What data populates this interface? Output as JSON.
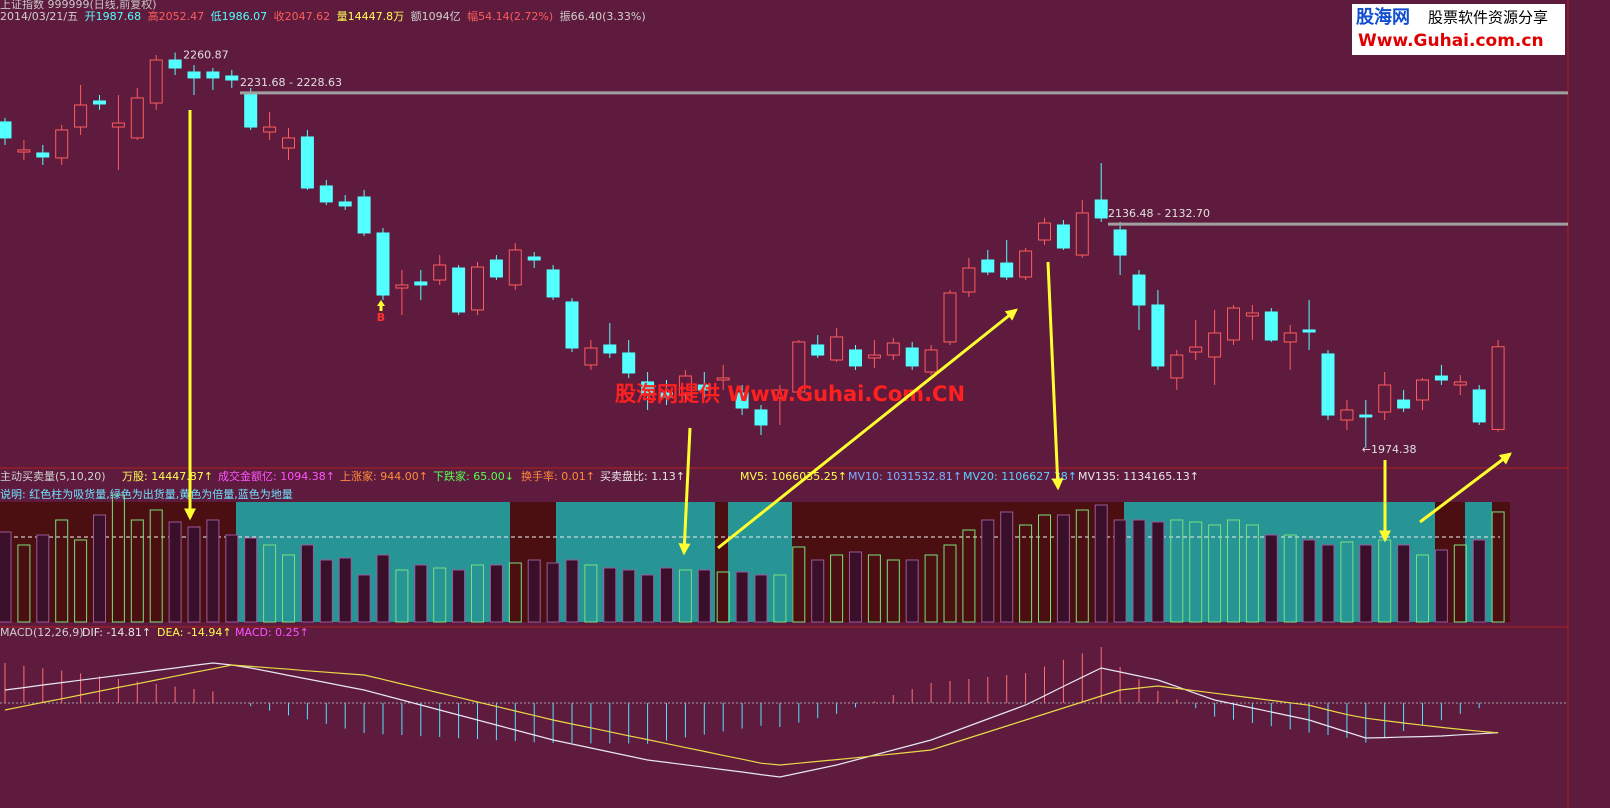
{
  "header": {
    "title": "上证指数 999999(日线,前复权)",
    "info": [
      "2014/03/21/五",
      "开1987.68",
      "高2052.47",
      "低1986.07",
      "收2047.62",
      "量14447.8万",
      "额1094亿",
      "幅54.14(2.72%)",
      "振66.40(3.33%)"
    ]
  },
  "logo": {
    "name": "股海网",
    "slogan": "股票软件资源分享",
    "url": "Www.Guhai.com.cn"
  },
  "chart_data": [
    {
      "type": "candlestick",
      "ylim": [
        1960,
        2299
      ],
      "up_color": "#ff5c5c",
      "down_color": "#54ffff",
      "open": [
        2210.6,
        2188.8,
        2188.1,
        2184.5,
        2206.9,
        2225.8,
        2206.9,
        2199,
        2224.3,
        2255.5,
        2246.8,
        2246.8,
        2243.9,
        2232.3,
        2203.3,
        2191.7,
        2199.7,
        2164.2,
        2152.6,
        2156.2,
        2130.1,
        2090.2,
        2094.6,
        2096,
        2104.7,
        2074.3,
        2110.5,
        2092.4,
        2112.7,
        2103.3,
        2080.1,
        2034.4,
        2048.9,
        2043.1,
        2022.1,
        2014.1,
        2012.6,
        2019.9,
        2023.5,
        2014.1,
        2001.8,
        2010.5,
        2014.8,
        2048.9,
        2038,
        2045.3,
        2039.5,
        2041.6,
        2046.7,
        2029.3,
        2051.1,
        2087.3,
        2110.5,
        2108.3,
        2098.2,
        2125,
        2135.9,
        2114.1,
        2154,
        2132.3,
        2099.6,
        2077.9,
        2025,
        2043.8,
        2040.2,
        2052.5,
        2069.9,
        2072.8,
        2051.1,
        2059.8,
        2042.4,
        1994.5,
        1998.1,
        2000.3,
        2009,
        2009,
        2026.4,
        2019.9,
        2016.3,
        1987.68
      ],
      "high": [
        2213.5,
        2197.5,
        2193.9,
        2208.4,
        2237.4,
        2230.1,
        2230.1,
        2235.2,
        2259.1,
        2260.87,
        2251.9,
        2249.7,
        2248.3,
        2235.2,
        2217.8,
        2206.2,
        2204.8,
        2168.5,
        2157.6,
        2161.3,
        2133.7,
        2103.3,
        2103.3,
        2114.1,
        2106.9,
        2109.1,
        2114.1,
        2122.8,
        2116.3,
        2106.9,
        2082.9,
        2052.5,
        2064.8,
        2052.5,
        2029.3,
        2023.5,
        2030.8,
        2029.3,
        2034.4,
        2019.9,
        2005.4,
        2019.9,
        2052.5,
        2056.1,
        2061.2,
        2048.9,
        2052.5,
        2054,
        2051.1,
        2048.9,
        2088.8,
        2112,
        2117.8,
        2125,
        2119.2,
        2141,
        2139.5,
        2154,
        2180.8,
        2138.1,
        2103.3,
        2088.8,
        2045.3,
        2067,
        2074.3,
        2077.9,
        2077.9,
        2075.7,
        2063.4,
        2081.5,
        2045.3,
        2009,
        2009,
        2029.3,
        2016.3,
        2025,
        2034.4,
        2027.1,
        2019.9,
        2052.47
      ],
      "low": [
        2193.9,
        2183,
        2179.4,
        2179.4,
        2201.1,
        2219.3,
        2175.8,
        2197.5,
        2219.3,
        2244.6,
        2230.1,
        2233.8,
        2235.2,
        2204.8,
        2197.5,
        2183,
        2161.3,
        2150.4,
        2146.8,
        2127.9,
        2081.5,
        2070.6,
        2081.5,
        2092.4,
        2070.6,
        2070.6,
        2096,
        2088.8,
        2104.7,
        2081.5,
        2043.8,
        2030.8,
        2039.5,
        2025,
        2001.8,
        2005.4,
        2009,
        2010.5,
        2016.3,
        1998.1,
        1983.6,
        1990.9,
        2012.6,
        2039.5,
        2036.6,
        2030.8,
        2032.2,
        2038,
        2030.8,
        2027.1,
        2048.9,
        2083.7,
        2099.6,
        2096,
        2096,
        2121.4,
        2117.8,
        2112,
        2138.1,
        2099.6,
        2059.8,
        2030.8,
        2016.3,
        2038,
        2019.9,
        2048.9,
        2052.5,
        2051.1,
        2030.8,
        2045.3,
        1994.5,
        1987.3,
        1974.38,
        1994.5,
        2000.3,
        2001.8,
        2019.9,
        2012.6,
        1990.9,
        1986.07
      ],
      "close": [
        2199,
        2190.3,
        2185.2,
        2204.8,
        2222.9,
        2223.6,
        2209.8,
        2228,
        2255.5,
        2249.7,
        2242.5,
        2242.5,
        2241,
        2206.9,
        2206.9,
        2199,
        2162.7,
        2152.6,
        2149.7,
        2130.1,
        2085.1,
        2092.4,
        2092.4,
        2106.9,
        2072.8,
        2105.4,
        2098.2,
        2117.8,
        2110.5,
        2083.7,
        2046.7,
        2046.7,
        2043.1,
        2028.6,
        2012.6,
        2011.2,
        2026.4,
        2016.3,
        2025,
        2003.2,
        1990.9,
        2016.3,
        2051.1,
        2041.6,
        2054.7,
        2033.7,
        2041.6,
        2050.3,
        2033.7,
        2045.3,
        2086.6,
        2104.7,
        2101.8,
        2098.2,
        2117,
        2137.3,
        2119.2,
        2144.6,
        2141,
        2114.1,
        2077.9,
        2033.7,
        2041.6,
        2047.4,
        2057.6,
        2075.7,
        2072.1,
        2052.5,
        2057.6,
        2058.3,
        1998.1,
        2001.8,
        1996.7,
        2019.9,
        2003.2,
        2023.5,
        2023.5,
        2022.1,
        1993.1,
        2047.62
      ],
      "high_label": "2260.87",
      "low_label": "←1974.38",
      "gaps": [
        {
          "value": 2231.68,
          "label": "2231.68 - 2228.63"
        },
        {
          "value": 2136.48,
          "label": "2136.48 - 2132.70"
        }
      ],
      "signal": "B",
      "watermark": "股海网提供 Www.Guhai.Com.CN"
    },
    {
      "type": "bar",
      "title": "主动买卖量(5,10,20)",
      "stats": [
        "万股: 14447.87↑",
        "成交金额亿: 1094.38↑",
        "上涨家: 944.00↑",
        "下跌家: 65.00↓",
        "换手率: 0.01↑",
        "买卖盘比: 1.13↑",
        "MV5: 1066035.25↑",
        "MV10: 1031532.81↑",
        "MV20: 1106627.38↑",
        "MV135: 1134165.13↑"
      ],
      "note": "说明: 红色柱为吸货量,绿色为出货量,黄色为倍量,蓝色为地量",
      "ylim": [
        0,
        20220
      ],
      "up_color": "#7be07b",
      "down_color": "#3a0f2a",
      "values": [
        11817,
        10110,
        11423,
        13393,
        10767,
        14049,
        16675,
        13393,
        14706,
        13130,
        12474,
        13393,
        11423,
        11029,
        10110,
        8797,
        10110,
        8141,
        8403,
        6171,
        8797,
        6828,
        7484,
        7090,
        6828,
        7484,
        7484,
        7747,
        8141,
        7747,
        8141,
        7484,
        7090,
        6828,
        6171,
        7090,
        6828,
        6828,
        6565,
        6565,
        6171,
        6171,
        9848,
        8141,
        8797,
        9191,
        8797,
        8141,
        8141,
        8797,
        10110,
        12080,
        13393,
        14443,
        12736,
        14049,
        14049,
        14706,
        15362,
        13393,
        13393,
        13130,
        13393,
        13130,
        12736,
        13393,
        12736,
        11423,
        11423,
        10767,
        10110,
        10504,
        10110,
        10767,
        10110,
        8797,
        9454,
        10110,
        10767,
        14447.87
      ]
    },
    {
      "type": "macd",
      "title": "MACD(12,26,9)",
      "stats": [
        "DIF: -14.81↑",
        "DEA: -14.94↑",
        "MACD: 0.25↑"
      ],
      "ylim": [
        -41,
        31.5
      ],
      "dif": {
        "color": "#e6e6f0",
        "values": [
          6.5,
          7.7,
          9,
          10.2,
          11.4,
          12.6,
          13.8,
          15,
          16.3,
          17.5,
          18.8,
          20,
          19,
          17.5,
          15.7,
          13.8,
          12,
          10.2,
          8.3,
          6.5,
          4,
          1.5,
          -1,
          -3.5,
          -6,
          -8.5,
          -11,
          -13.5,
          -16,
          -18.5,
          -20.5,
          -22.5,
          -24.5,
          -26.5,
          -28.5,
          -29.7,
          -30.9,
          -32.1,
          -33.3,
          -34.5,
          -35.8,
          -37,
          -35,
          -33,
          -31,
          -28.5,
          -26,
          -23.5,
          -21,
          -18.5,
          -15,
          -11.5,
          -8,
          -4.5,
          -1,
          3.6,
          8.3,
          12.9,
          17.5,
          15.5,
          13.5,
          11.5,
          8.2,
          4.8,
          1.5,
          -0.5,
          -2.5,
          -4.5,
          -6.5,
          -8.5,
          -11.5,
          -14.5,
          -17.5,
          -17.3,
          -17,
          -16.8,
          -16.5,
          -15.9,
          -15.4,
          -14.81
        ]
      },
      "dea": {
        "color": "#e8d84a",
        "values": [
          -3.5,
          -1.6,
          0.3,
          2.1,
          4,
          5.9,
          7.8,
          9.6,
          11.5,
          13.4,
          15.3,
          17.1,
          19,
          18.3,
          17.6,
          16.9,
          16.1,
          15.4,
          14.7,
          14,
          11.8,
          9.5,
          7.3,
          5,
          2.8,
          0.5,
          -1.7,
          -4,
          -6.2,
          -8.5,
          -10.5,
          -12.4,
          -14.4,
          -16.4,
          -18.3,
          -20.3,
          -22.3,
          -24.2,
          -26.2,
          -28.1,
          -30.1,
          -31,
          -30.1,
          -29.2,
          -28.3,
          -27.4,
          -26.4,
          -25.5,
          -24.5,
          -23.5,
          -20.5,
          -17.5,
          -14.5,
          -11.5,
          -8.5,
          -5.5,
          -2.5,
          0.5,
          3.5,
          6.5,
          7.5,
          8.5,
          7.3,
          6.1,
          4.9,
          3.7,
          2.5,
          1.3,
          0.1,
          -1.1,
          -3.5,
          -5.8,
          -7.6,
          -8.8,
          -10,
          -11.1,
          -12.2,
          -13.2,
          -14.1,
          -14.94
        ]
      },
      "macd": {
        "up_color": "#ff7070",
        "down_color": "#54e0ff",
        "values": [
          20,
          18.6,
          17.4,
          16.2,
          14.8,
          13.4,
          12,
          10.8,
          9.6,
          8.2,
          7,
          5.8,
          0,
          -1.6,
          -3.8,
          -6.2,
          -8.2,
          -10.4,
          -12.8,
          -15,
          -15.6,
          -16,
          -16.6,
          -17,
          -17.6,
          -18,
          -18.6,
          -19,
          -19.6,
          -20,
          -20,
          -20.2,
          -20.2,
          -20.2,
          -20.4,
          -18.8,
          -17.2,
          -15.8,
          -14.2,
          -12.8,
          -11.4,
          -12,
          -9.8,
          -7.6,
          -5.4,
          -2.2,
          0.8,
          4,
          7,
          10,
          11,
          12,
          13,
          14,
          15,
          18.2,
          21.6,
          24.8,
          28,
          18,
          12,
          6,
          1.8,
          -2.6,
          -6.8,
          -8.4,
          -10,
          -11.6,
          -13.2,
          -14.8,
          -16,
          -17.4,
          -19.8,
          -17,
          -14,
          -11.4,
          -8.6,
          -5.4,
          -2.6,
          0.25
        ]
      }
    }
  ]
}
